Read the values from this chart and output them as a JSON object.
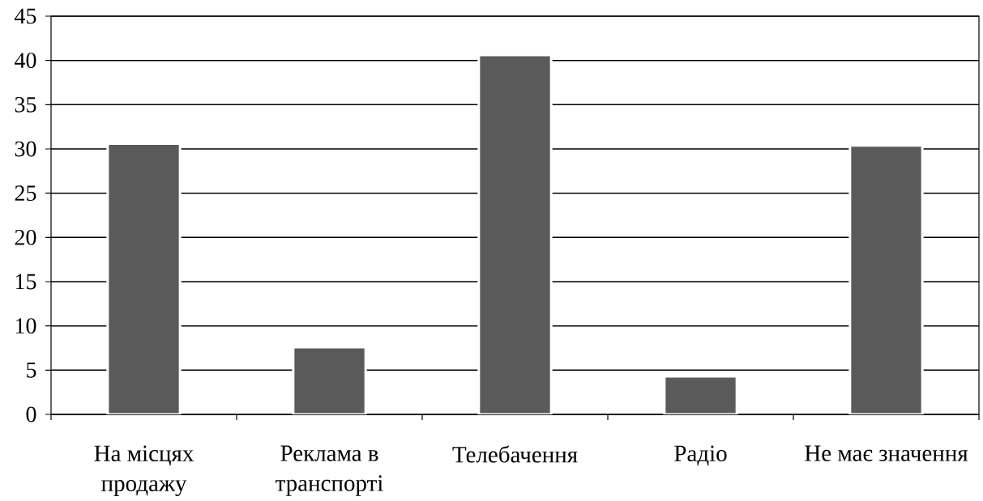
{
  "chart_data": {
    "type": "bar",
    "categories": [
      "На місцях продажу",
      "Реклама в транспорті",
      "Телебачення",
      "Радіо",
      "Не має значення"
    ],
    "values": [
      30.6,
      7.6,
      40.6,
      4.3,
      30.4
    ],
    "color": "#5a5a5a",
    "ylim": [
      0,
      45
    ],
    "yticks": [
      0,
      5,
      10,
      15,
      20,
      25,
      30,
      35,
      40,
      45
    ],
    "grid": "y"
  }
}
